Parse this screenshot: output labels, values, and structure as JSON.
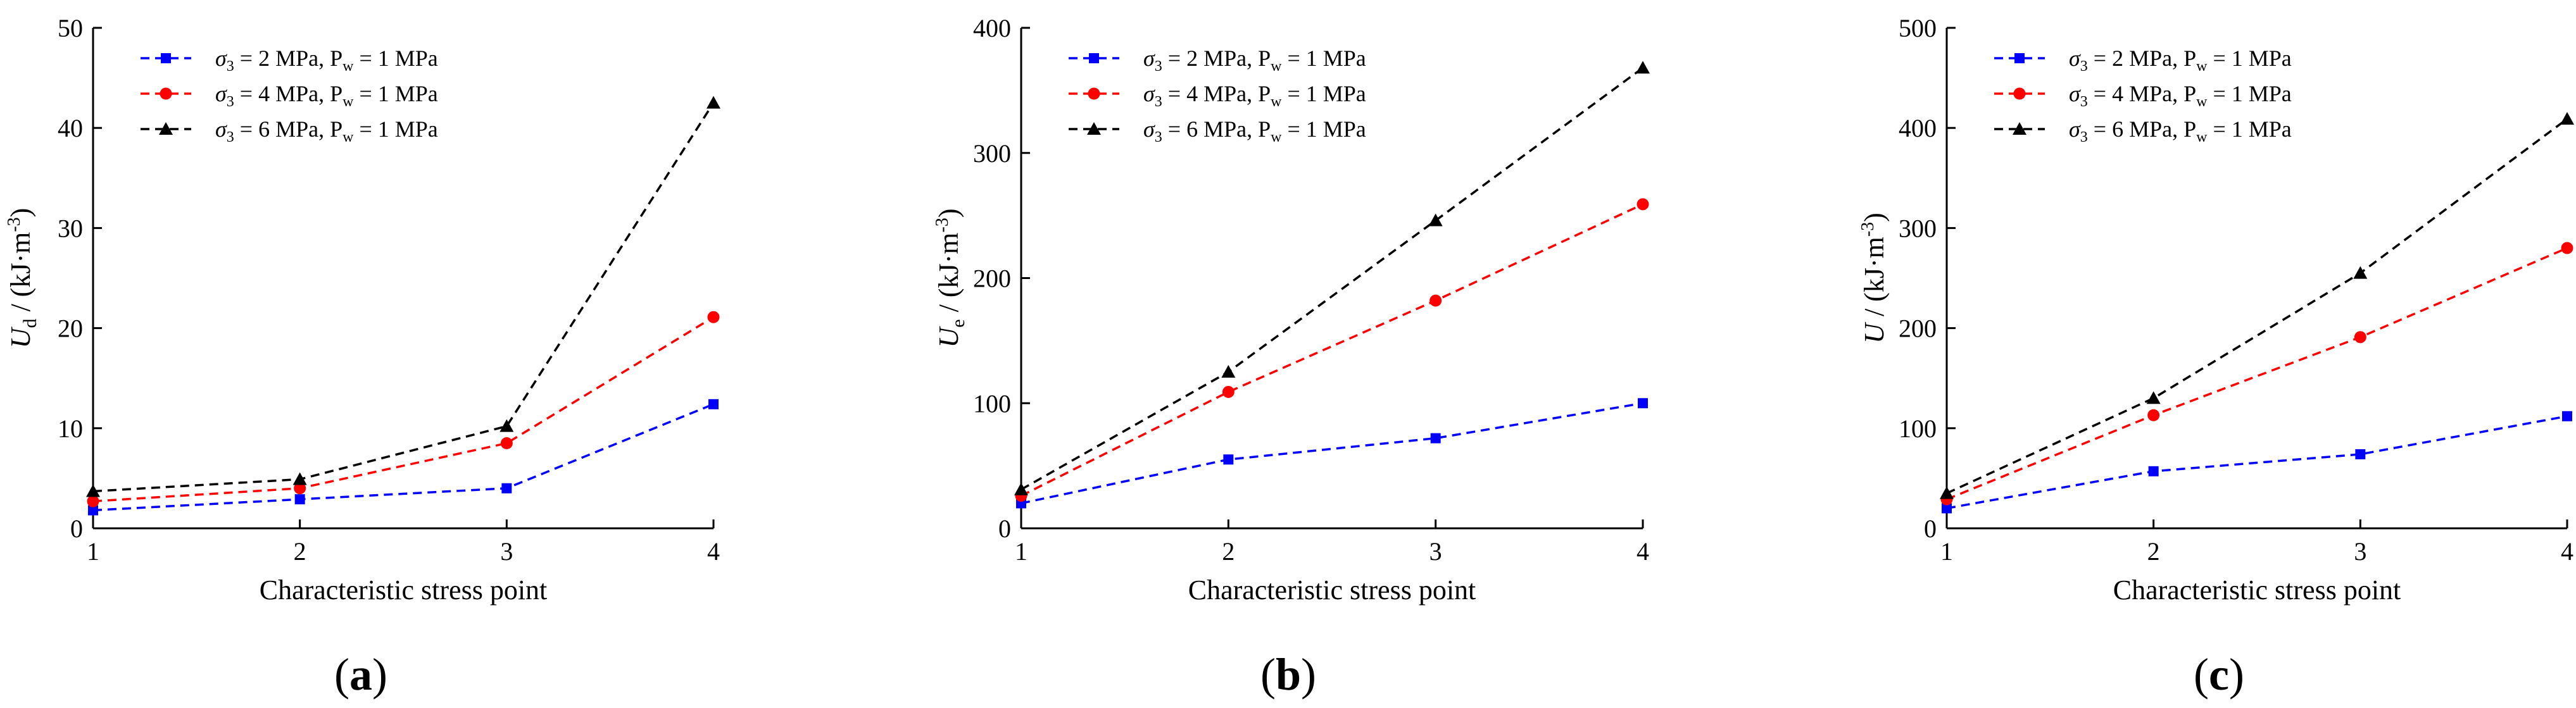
{
  "colors": {
    "blue": "#0000ff",
    "red": "#ff0000",
    "black": "#000000"
  },
  "legend": [
    {
      "sigma": "3",
      "sigma_value": " = 2 MPa, P",
      "pw_sub": "w",
      "pw_value": " = 1 MPa",
      "color": "#0000ff",
      "marker": "square"
    },
    {
      "sigma": "3",
      "sigma_value": " = 4 MPa, P",
      "pw_sub": "w",
      "pw_value": " = 1 MPa",
      "color": "#ff0000",
      "marker": "circle"
    },
    {
      "sigma": "3",
      "sigma_value": " = 6 MPa, P",
      "pw_sub": "w",
      "pw_value": " = 1 MPa",
      "color": "#000000",
      "marker": "triangle"
    }
  ],
  "chart_data": [
    {
      "type": "line",
      "panel_label": "a",
      "title": "",
      "xlabel": "Characteristic stress point",
      "ylabel_symbol": "U",
      "ylabel_sub": "d",
      "ylabel_unit": " / (kJ·m",
      "ylabel_exp": "-3",
      "ylabel_close": ")",
      "x": [
        1,
        2,
        3,
        4
      ],
      "xlim": [
        1,
        4
      ],
      "ylim": [
        0,
        50
      ],
      "xticks": [
        "1",
        "2",
        "3",
        "4"
      ],
      "yticks": [
        "0",
        "10",
        "20",
        "30",
        "40",
        "50"
      ],
      "series": [
        {
          "name": "σ3 = 2 MPa, Pw = 1 MPa",
          "color": "#0000ff",
          "marker": "square",
          "values": [
            1.8,
            2.9,
            4.0,
            12.4
          ]
        },
        {
          "name": "σ3 = 4 MPa, Pw = 1 MPa",
          "color": "#ff0000",
          "marker": "circle",
          "values": [
            2.7,
            4.0,
            8.5,
            21.1
          ]
        },
        {
          "name": "σ3 = 6 MPa, Pw = 1 MPa",
          "color": "#000000",
          "marker": "triangle",
          "values": [
            3.7,
            4.9,
            10.2,
            42.5
          ]
        }
      ]
    },
    {
      "type": "line",
      "panel_label": "b",
      "title": "",
      "xlabel": "Characteristic stress point",
      "ylabel_symbol": "U",
      "ylabel_sub": "e",
      "ylabel_unit": " / (kJ·m",
      "ylabel_exp": "-3",
      "ylabel_close": ")",
      "x": [
        1,
        2,
        3,
        4
      ],
      "xlim": [
        1,
        4
      ],
      "ylim": [
        0,
        400
      ],
      "xticks": [
        "1",
        "2",
        "3",
        "4"
      ],
      "yticks": [
        "0",
        "100",
        "200",
        "300",
        "400"
      ],
      "series": [
        {
          "name": "σ3 = 2 MPa, Pw = 1 MPa",
          "color": "#0000ff",
          "marker": "square",
          "values": [
            20,
            55,
            72,
            100
          ]
        },
        {
          "name": "σ3 = 4 MPa, Pw = 1 MPa",
          "color": "#ff0000",
          "marker": "circle",
          "values": [
            26,
            109,
            182,
            259
          ]
        },
        {
          "name": "σ3 = 6 MPa, Pw = 1 MPa",
          "color": "#000000",
          "marker": "triangle",
          "values": [
            31,
            125,
            246,
            368
          ]
        }
      ]
    },
    {
      "type": "line",
      "panel_label": "c",
      "title": "",
      "xlabel": "Characteristic stress point",
      "ylabel_symbol": "U",
      "ylabel_sub": "",
      "ylabel_unit": " / (kJ·m",
      "ylabel_exp": "-3",
      "ylabel_close": ")",
      "x": [
        1,
        2,
        3,
        4
      ],
      "xlim": [
        1,
        4
      ],
      "ylim": [
        0,
        500
      ],
      "xticks": [
        "1",
        "2",
        "3",
        "4"
      ],
      "yticks": [
        "0",
        "100",
        "200",
        "300",
        "400",
        "500"
      ],
      "series": [
        {
          "name": "σ3 = 2 MPa, Pw = 1 MPa",
          "color": "#0000ff",
          "marker": "square",
          "values": [
            20,
            57,
            74,
            112
          ]
        },
        {
          "name": "σ3 = 4 MPa, Pw = 1 MPa",
          "color": "#ff0000",
          "marker": "circle",
          "values": [
            29,
            113,
            191,
            280
          ]
        },
        {
          "name": "σ3 = 6 MPa, Pw = 1 MPa",
          "color": "#000000",
          "marker": "triangle",
          "values": [
            35,
            130,
            255,
            409
          ]
        }
      ]
    }
  ]
}
